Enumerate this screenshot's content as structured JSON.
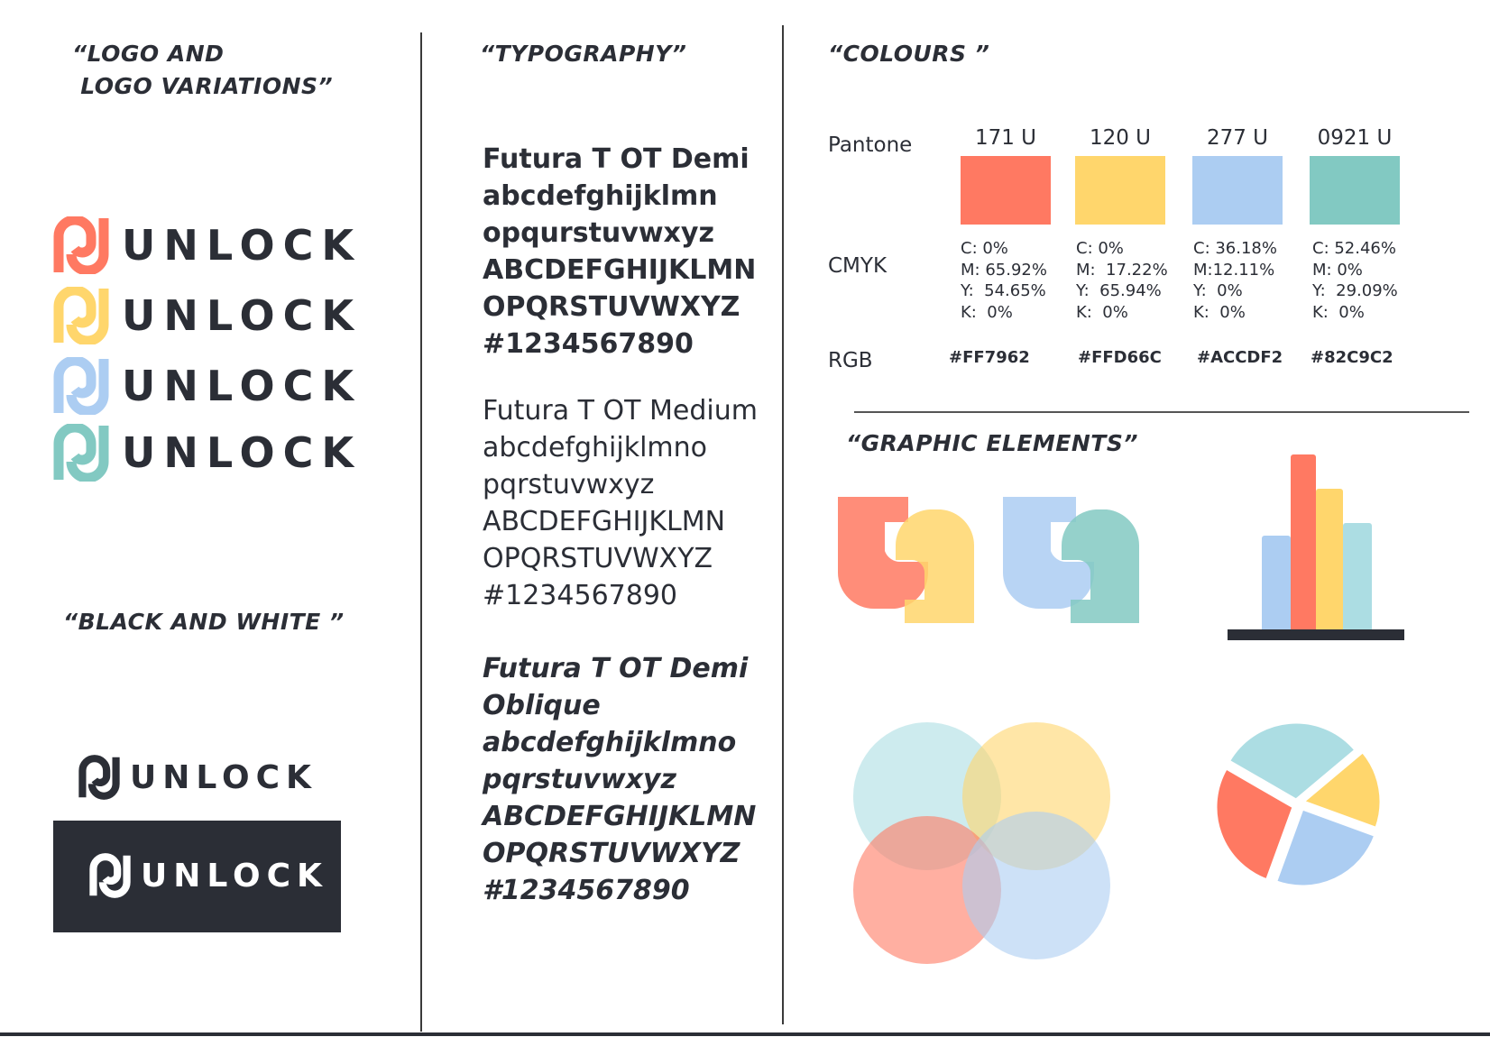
{
  "headings": {
    "logo": "“LOGO AND\n LOGO VARIATIONS”",
    "bw": "“BLACK AND WHITE ”",
    "typography": "“TYPOGRAPHY”",
    "colours": "“COLOURS ”",
    "graphic": "“GRAPHIC ELEMENTS”"
  },
  "logo": {
    "wordmark": "UNLOCK",
    "variations": [
      {
        "icon": "unlock-mark-icon",
        "color": "#FF7962"
      },
      {
        "icon": "unlock-mark-icon",
        "color": "#FFD66C"
      },
      {
        "icon": "unlock-mark-icon",
        "color": "#ACCDF2"
      },
      {
        "icon": "unlock-mark-icon",
        "color": "#82C9C2"
      }
    ],
    "bw_dark": "#2b2e36",
    "bw_light": "#ffffff"
  },
  "typography": [
    {
      "style": "demi",
      "lines": [
        "Futura T OT Demi",
        "abcdefghijklmn",
        "opqurstuvwxyz",
        "ABCDEFGHIJKLMN",
        "OPQRSTUVWXYZ",
        "#1234567890"
      ]
    },
    {
      "style": "medium",
      "lines": [
        "Futura T OT Medium",
        "abcdefghijklmno",
        "pqrstuvwxyz",
        "ABCDEFGHIJKLMN",
        "OPQRSTUVWXYZ",
        "#1234567890"
      ]
    },
    {
      "style": "oblique",
      "lines": [
        "Futura T OT Demi",
        "Oblique",
        "abcdefghijklmno",
        "pqrstuvwxyz",
        "ABCDEFGHIJKLMN",
        "OPQRSTUVWXYZ",
        "#1234567890"
      ]
    }
  ],
  "colours": {
    "labels": {
      "pantone": "Pantone",
      "cmyk": "CMYK",
      "rgb": "RGB"
    },
    "swatches": [
      {
        "pantone": "171 U",
        "cmyk": "C: 0%\nM: 65.92%\nY:  54.65%\nK:  0%",
        "rgb": "#FF7962",
        "color": "#FF7962"
      },
      {
        "pantone": "120 U",
        "cmyk": "C: 0%\nM:  17.22%\nY:  65.94%\nK:  0%",
        "rgb": "#FFD66C",
        "color": "#FFD66C"
      },
      {
        "pantone": "277 U",
        "cmyk": "C: 36.18%\nM:12.11%\nY:  0%\nK:  0%",
        "rgb": "#ACCDF2",
        "color": "#ACCDF2"
      },
      {
        "pantone": "0921 U",
        "cmyk": "C: 52.46%\nM: 0%\nY:  29.09%\nK:  0%",
        "rgb": "#82C9C2",
        "color": "#82C9C2"
      }
    ]
  },
  "graphics": {
    "bar_colors": [
      "#ACCDF2",
      "#FF7962",
      "#FFD66C",
      "#ACDDE3"
    ],
    "venn_colors": [
      "#ACDDE3",
      "#FFD66C",
      "#FF7962",
      "#ACCDF2"
    ],
    "pie_colors": [
      "#ACDDE3",
      "#FFD66C",
      "#ACCDF2",
      "#FF7962"
    ],
    "base_color": "#2b2e36"
  }
}
